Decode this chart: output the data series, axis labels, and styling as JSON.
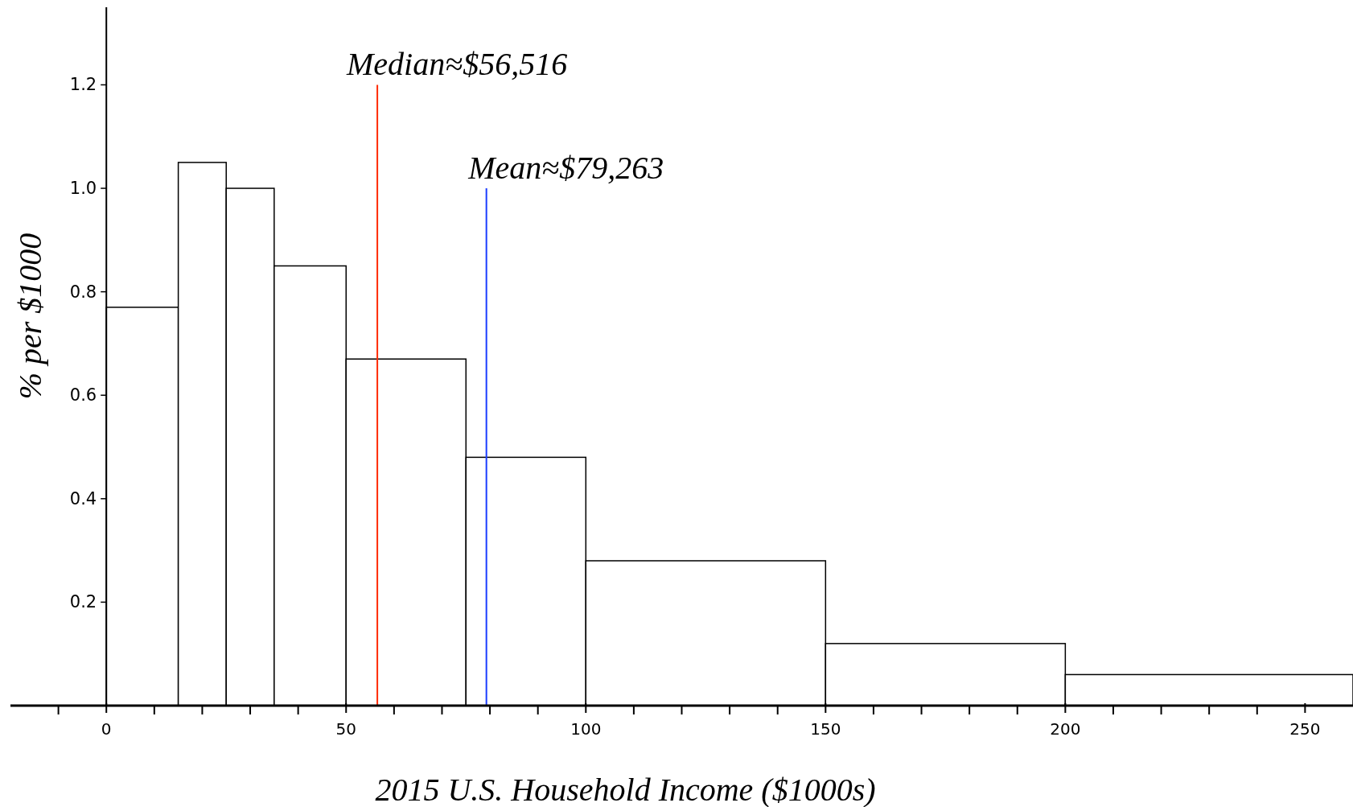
{
  "chart_data": {
    "type": "histogram",
    "xlabel": "2015 U.S. Household Income ($1000s)",
    "ylabel": "% per $1000",
    "bins": [
      0,
      15,
      25,
      35,
      50,
      75,
      100,
      150,
      200,
      260
    ],
    "values": [
      0.77,
      1.05,
      1.0,
      0.85,
      0.67,
      0.48,
      0.28,
      0.12,
      0.06
    ],
    "color": "#ffffff",
    "xlim": [
      -20,
      260
    ],
    "xticks": [
      {
        "value": -10,
        "label": null
      },
      0,
      {
        "value": 10,
        "label": null
      },
      {
        "value": 20,
        "label": null
      },
      {
        "value": 30,
        "label": null
      },
      {
        "value": 40,
        "label": null
      },
      50,
      {
        "value": 60,
        "label": null
      },
      {
        "value": 70,
        "label": null
      },
      {
        "value": 80,
        "label": null
      },
      {
        "value": 90,
        "label": null
      },
      100,
      {
        "value": 110,
        "label": null
      },
      {
        "value": 120,
        "label": null
      },
      {
        "value": 130,
        "label": null
      },
      {
        "value": 140,
        "label": null
      },
      150,
      {
        "value": 160,
        "label": null
      },
      {
        "value": 170,
        "label": null
      },
      {
        "value": 180,
        "label": null
      },
      {
        "value": 190,
        "label": null
      },
      200,
      {
        "value": 210,
        "label": null
      },
      {
        "value": 220,
        "label": null
      },
      {
        "value": 230,
        "label": null
      },
      {
        "value": 240,
        "label": null
      },
      250
    ],
    "ylim": [
      0,
      1.35
    ],
    "yticks": [
      0.2,
      0.4,
      0.6,
      {
        "value": 0.8,
        "label": "0.8"
      },
      {
        "value": 1.0,
        "label": "1.0"
      },
      1.2
    ],
    "ref_lines": [
      {
        "axis": "x",
        "value": 56.516,
        "color": "#ff2a00"
      },
      {
        "axis": "x",
        "value": 79.263,
        "color": "#1a3cff"
      }
    ],
    "annotations": [
      {
        "text": "Median≈$56,516",
        "x": 56.516,
        "y": 1.2
      },
      {
        "text": "Mean≈$79,263",
        "x": 79.263,
        "y": 1.0
      }
    ],
    "grid": false
  }
}
